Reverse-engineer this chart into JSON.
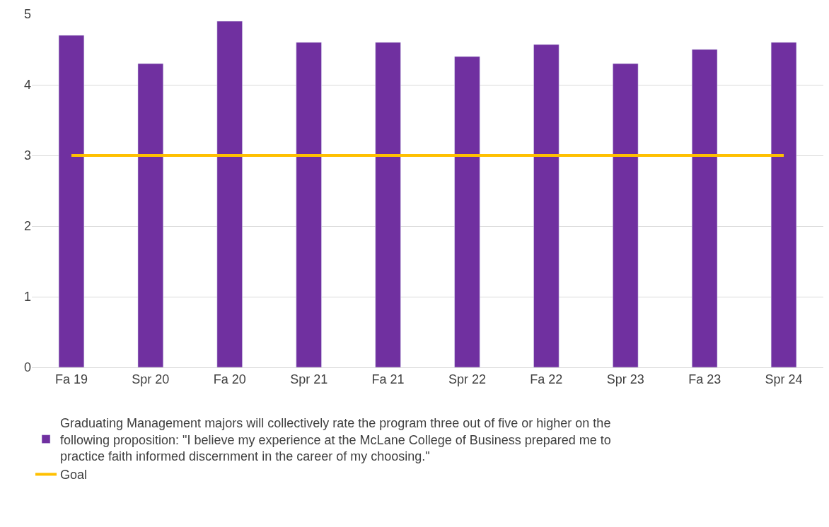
{
  "chart_data": {
    "type": "bar",
    "categories": [
      "Fa 19",
      "Spr 20",
      "Fa 20",
      "Spr 21",
      "Fa 21",
      "Spr 22",
      "Fa 22",
      "Spr 23",
      "Fa 23",
      "Spr 24"
    ],
    "series": [
      {
        "name": "Graduating Management majors will collectively rate the program three out of five or higher on the following proposition: \"I believe my experience at the McLane College of Business prepared me to practice faith informed discernment in the career of my choosing.\"",
        "color": "#7030a0",
        "values": [
          4.7,
          4.3,
          4.9,
          4.6,
          4.6,
          4.4,
          4.57,
          4.3,
          4.5,
          4.6
        ]
      },
      {
        "name": "Goal",
        "type": "line",
        "color": "#ffc000",
        "values": [
          3,
          3,
          3,
          3,
          3,
          3,
          3,
          3,
          3,
          3
        ]
      }
    ],
    "ylim": [
      0,
      5
    ],
    "yticks": [
      0,
      1,
      2,
      3,
      4,
      5
    ],
    "grid": "y",
    "legend": "bottom"
  }
}
